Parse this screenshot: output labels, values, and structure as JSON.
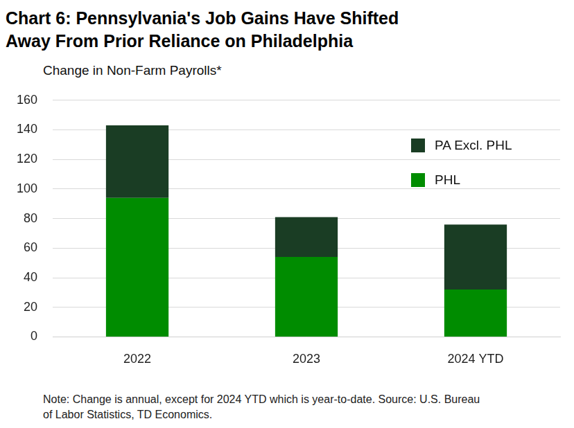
{
  "chart_data": {
    "type": "bar",
    "title": [
      "Chart 6: Pennsylvania's Job Gains Have Shifted",
      "Away From Prior Reliance on Philadelphia"
    ],
    "subtitle": "Change in Non-Farm Payrolls*",
    "note": [
      "Note: Change is annual, except for 2024 YTD which is year-to-date. Source: U.S. Bureau",
      "of Labor Statistics, TD Economics."
    ],
    "categories": [
      "2022",
      "2023",
      "2024 YTD"
    ],
    "series": [
      {
        "name": "PHL",
        "color": "#008c00",
        "values": [
          94,
          54,
          32
        ]
      },
      {
        "name": "PA Excl. PHL",
        "color": "#1a3d24",
        "values": [
          49,
          27,
          44
        ]
      }
    ],
    "stacked": true,
    "ylim": [
      0,
      160
    ],
    "yticks": [
      0,
      20,
      40,
      60,
      80,
      100,
      120,
      140,
      160
    ],
    "grid": true,
    "legend": "upper right"
  }
}
